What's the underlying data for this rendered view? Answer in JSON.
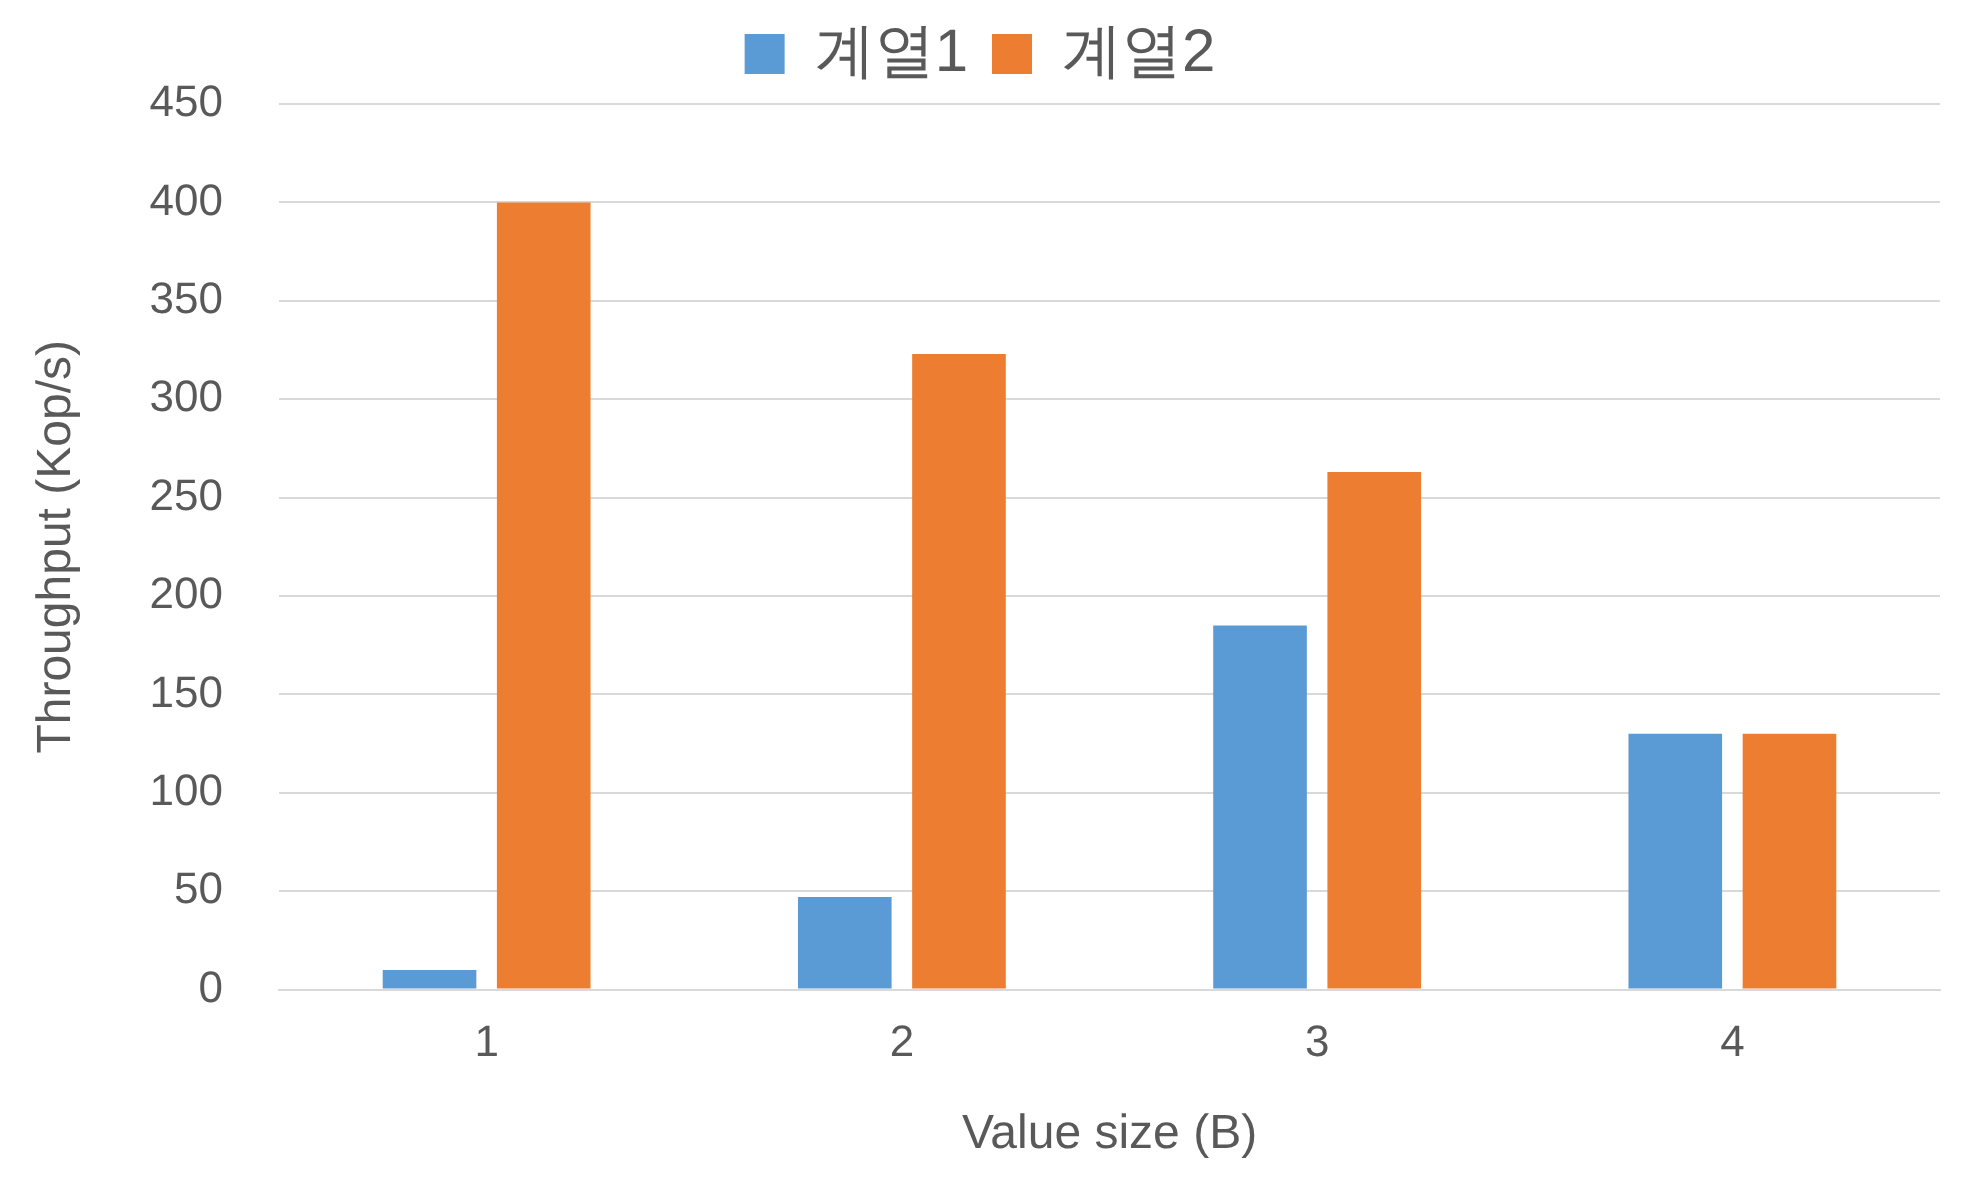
{
  "chart_data": {
    "type": "bar",
    "xlabel": "Value size (B)",
    "ylabel": "Throughput (Kop/s)",
    "categories": [
      "1",
      "2",
      "3",
      "4"
    ],
    "series": [
      {
        "name": "계열1",
        "color": "#5b9bd5",
        "values": [
          10,
          47,
          185,
          130
        ]
      },
      {
        "name": "계열2",
        "color": "#ed7d31",
        "values": [
          400,
          323,
          263,
          130
        ]
      }
    ],
    "ylim": [
      0,
      450
    ],
    "yticks": [
      0,
      50,
      100,
      150,
      200,
      250,
      300,
      350,
      400,
      450
    ],
    "grid": "y",
    "legend": "top"
  }
}
